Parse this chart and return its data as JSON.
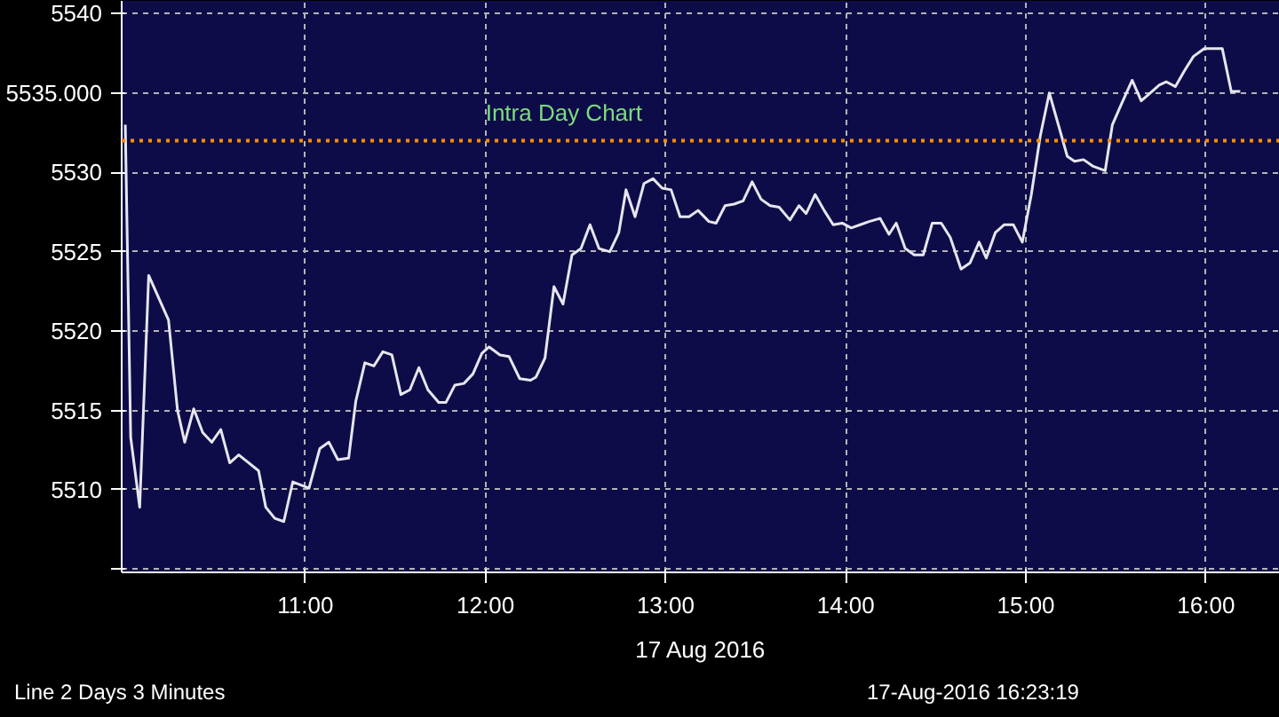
{
  "chart_data": {
    "type": "line",
    "x": [
      10.0,
      10.03,
      10.08,
      10.13,
      10.24,
      10.29,
      10.33,
      10.38,
      10.43,
      10.48,
      10.53,
      10.58,
      10.63,
      10.74,
      10.78,
      10.83,
      10.88,
      10.93,
      11.02,
      11.08,
      11.13,
      11.18,
      11.24,
      11.28,
      11.33,
      11.38,
      11.43,
      11.48,
      11.53,
      11.58,
      11.63,
      11.68,
      11.74,
      11.78,
      11.83,
      11.88,
      11.93,
      11.98,
      12.02,
      12.08,
      12.13,
      12.19,
      12.25,
      12.28,
      12.33,
      12.38,
      12.43,
      12.48,
      12.53,
      12.58,
      12.63,
      12.69,
      12.74,
      12.78,
      12.83,
      12.88,
      12.93,
      12.98,
      13.03,
      13.08,
      13.13,
      13.18,
      13.24,
      13.28,
      13.33,
      13.38,
      13.43,
      13.48,
      13.53,
      13.58,
      13.63,
      13.69,
      13.74,
      13.78,
      13.83,
      13.88,
      13.93,
      13.98,
      14.03,
      14.08,
      14.13,
      14.19,
      14.24,
      14.28,
      14.33,
      14.38,
      14.43,
      14.48,
      14.53,
      14.58,
      14.64,
      14.69,
      14.74,
      14.78,
      14.83,
      14.88,
      14.93,
      14.98,
      15.03,
      15.08,
      15.13,
      15.18,
      15.23,
      15.27,
      15.32,
      15.37,
      15.44,
      15.48,
      15.53,
      15.59,
      15.64,
      15.69,
      15.74,
      15.78,
      15.83,
      15.88,
      15.93,
      15.99,
      16.04,
      16.09,
      16.14,
      16.19
    ],
    "series": [
      {
        "color": "#e6e6ee",
        "values": [
          5533.0,
          5513.3,
          5508.9,
          5523.5,
          5520.7,
          5515.0,
          5513.0,
          5515.1,
          5513.6,
          5513.0,
          5513.8,
          5511.7,
          5512.2,
          5511.2,
          5508.9,
          5508.2,
          5508.0,
          5510.5,
          5510.1,
          5512.6,
          5513.0,
          5511.9,
          5512.0,
          5515.6,
          5518.0,
          5517.8,
          5518.7,
          5518.5,
          5516.0,
          5516.3,
          5517.7,
          5516.3,
          5515.5,
          5515.5,
          5516.6,
          5516.7,
          5517.3,
          5518.6,
          5519.0,
          5518.5,
          5518.4,
          5517.0,
          5516.9,
          5517.1,
          5518.3,
          5522.8,
          5521.7,
          5524.8,
          5525.2,
          5526.7,
          5525.2,
          5525.0,
          5526.2,
          5528.9,
          5527.2,
          5529.3,
          5529.6,
          5529.0,
          5528.9,
          5527.2,
          5527.2,
          5527.6,
          5526.9,
          5526.8,
          5527.9,
          5528.0,
          5528.2,
          5529.4,
          5528.3,
          5527.9,
          5527.8,
          5527.0,
          5527.9,
          5527.4,
          5528.6,
          5527.6,
          5526.7,
          5526.8,
          5526.5,
          5526.7,
          5526.9,
          5527.1,
          5526.1,
          5526.8,
          5525.2,
          5524.8,
          5524.8,
          5526.8,
          5526.8,
          5525.9,
          5523.9,
          5524.3,
          5525.6,
          5524.6,
          5526.2,
          5526.7,
          5526.7,
          5525.6,
          5528.6,
          5532.3,
          5535.0,
          5533.0,
          5531.0,
          5530.7,
          5530.8,
          5530.4,
          5530.1,
          5533.0,
          5534.3,
          5535.8,
          5534.5,
          5535.0,
          5535.5,
          5535.7,
          5535.4,
          5536.4,
          5537.3,
          5537.8,
          5537.8,
          5537.8,
          5535.1,
          5535.1
        ]
      }
    ],
    "xlim": [
      9.98,
      16.41
    ],
    "xticks": [
      {
        "value": 11,
        "label": "11:00"
      },
      {
        "value": 12,
        "label": "12:00"
      },
      {
        "value": 13,
        "label": "13:00"
      },
      {
        "value": 14,
        "label": "14:00"
      },
      {
        "value": 15,
        "label": "15:00"
      },
      {
        "value": 16,
        "label": "16:00"
      }
    ],
    "ylim": [
      5504.8,
      5540.8
    ],
    "yticks": [
      {
        "value": 5505,
        "label": null
      },
      5510,
      5515,
      5520,
      5525,
      5530,
      {
        "value": 5535,
        "label": "5535.000"
      },
      5540
    ],
    "grid": true,
    "marker": "none",
    "line_style": "solid",
    "ref_lines": [
      {
        "axis": "y",
        "value": 5532,
        "label": "Intra Day Chart",
        "color": "#ff8c00",
        "line_style": "dotted"
      }
    ],
    "annotations": [
      "17 Aug 2016",
      "Line 2 Days 3 Minutes",
      "17-Aug-2016 16:23:19"
    ]
  }
}
